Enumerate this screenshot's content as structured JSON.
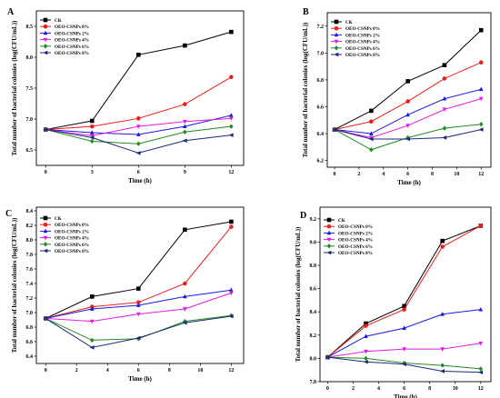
{
  "figure": {
    "legend_labels": [
      "CK",
      "OEO-CSNPs 0%",
      "OEO-CSNPs 2%",
      "OEO-CSNPs 4%",
      "OEO-CSNPs 6%",
      "OEO-CSNPs 8%"
    ],
    "series_colors": [
      "#000000",
      "#e8201c",
      "#1a1ad6",
      "#e01ee0",
      "#228b22",
      "#1c2a7a"
    ],
    "series_markers": [
      "square",
      "circle",
      "triangle-up",
      "triangle-down",
      "diamond",
      "triangle-left"
    ]
  },
  "chart_data": [
    {
      "panel_label": "A",
      "type": "line",
      "xlabel": "Time (h)",
      "ylabel": "Total number of bacterial colonies (log(CFU/mL))",
      "x": [
        0,
        3,
        6,
        9,
        12
      ],
      "xlim": [
        -0.6,
        12.8
      ],
      "ylim": [
        6.25,
        8.75
      ],
      "xticks": [
        "0",
        "3",
        "6",
        "9",
        "12"
      ],
      "yticks": [
        "6.5",
        "7.0",
        "7.5",
        "8.0",
        "8.5"
      ],
      "ytick_values": [
        6.5,
        7.0,
        7.5,
        8.0,
        8.5
      ],
      "legend_position": "top-left",
      "series": [
        {
          "name": "CK",
          "values": [
            6.83,
            6.97,
            8.04,
            8.19,
            8.41
          ]
        },
        {
          "name": "OEO-CSNPs 0%",
          "values": [
            6.83,
            6.88,
            7.01,
            7.24,
            7.68
          ]
        },
        {
          "name": "OEO-CSNPs 2%",
          "values": [
            6.83,
            6.78,
            6.75,
            6.88,
            7.06
          ]
        },
        {
          "name": "OEO-CSNPs 4%",
          "values": [
            6.83,
            6.73,
            6.88,
            6.96,
            7.01
          ]
        },
        {
          "name": "OEO-CSNPs 6%",
          "values": [
            6.83,
            6.64,
            6.6,
            6.79,
            6.88
          ]
        },
        {
          "name": "OEO-CSNPs 8%",
          "values": [
            6.83,
            6.7,
            6.45,
            6.65,
            6.74
          ]
        }
      ]
    },
    {
      "panel_label": "B",
      "type": "line",
      "xlabel": "Time (h)",
      "ylabel": "Total number of bacterial colonies (log(CFU/mL))",
      "x": [
        0,
        3,
        6,
        9,
        12
      ],
      "xlim": [
        -0.6,
        12.8
      ],
      "ylim": [
        6.15,
        7.3
      ],
      "xticks": [
        "0",
        "2",
        "4",
        "6",
        "8",
        "10",
        "12"
      ],
      "xtick_values": [
        0,
        2,
        4,
        6,
        8,
        10,
        12
      ],
      "yticks": [
        "6.2",
        "6.4",
        "6.6",
        "6.8",
        "7.0",
        "7.2"
      ],
      "ytick_values": [
        6.2,
        6.4,
        6.6,
        6.8,
        7.0,
        7.2
      ],
      "legend_position": "top-left",
      "series": [
        {
          "name": "CK",
          "values": [
            6.43,
            6.57,
            6.79,
            6.91,
            7.17
          ]
        },
        {
          "name": "OEO-CSNPs 0%",
          "values": [
            6.43,
            6.49,
            6.64,
            6.81,
            6.93
          ]
        },
        {
          "name": "OEO-CSNPs 2%",
          "values": [
            6.43,
            6.4,
            6.54,
            6.66,
            6.73
          ]
        },
        {
          "name": "OEO-CSNPs 4%",
          "values": [
            6.43,
            6.37,
            6.46,
            6.58,
            6.66
          ]
        },
        {
          "name": "OEO-CSNPs 6%",
          "values": [
            6.43,
            6.28,
            6.37,
            6.44,
            6.47
          ]
        },
        {
          "name": "OEO-CSNPs 8%",
          "values": [
            6.43,
            6.36,
            6.36,
            6.37,
            6.43
          ]
        }
      ]
    },
    {
      "panel_label": "C",
      "type": "line",
      "xlabel": "Time (h)",
      "ylabel": "Total number of bacterial colonies (log(CFU/mL))",
      "x": [
        0,
        3,
        6,
        9,
        12
      ],
      "xlim": [
        -0.6,
        12.8
      ],
      "ylim": [
        6.3,
        8.45
      ],
      "xticks": [
        "0",
        "2",
        "4",
        "6",
        "8",
        "10",
        "12"
      ],
      "xtick_values": [
        0,
        2,
        4,
        6,
        8,
        10,
        12
      ],
      "yticks": [
        "6.4",
        "6.6",
        "6.8",
        "7.0",
        "7.2",
        "7.4",
        "7.6",
        "7.8",
        "8.0",
        "8.2",
        "8.4"
      ],
      "ytick_values": [
        6.4,
        6.6,
        6.8,
        7.0,
        7.2,
        7.4,
        7.6,
        7.8,
        8.0,
        8.2,
        8.4
      ],
      "legend_position": "top-left",
      "series": [
        {
          "name": "CK",
          "values": [
            6.92,
            7.22,
            7.33,
            8.14,
            8.25
          ]
        },
        {
          "name": "OEO-CSNPs 0%",
          "values": [
            6.92,
            7.08,
            7.14,
            7.4,
            8.18
          ]
        },
        {
          "name": "OEO-CSNPs 2%",
          "values": [
            6.92,
            7.05,
            7.1,
            7.22,
            7.31
          ]
        },
        {
          "name": "OEO-CSNPs 4%",
          "values": [
            6.92,
            6.88,
            6.98,
            7.05,
            7.27
          ]
        },
        {
          "name": "OEO-CSNPs 6%",
          "values": [
            6.92,
            6.62,
            6.64,
            6.88,
            6.96
          ]
        },
        {
          "name": "OEO-CSNPs 8%",
          "values": [
            6.92,
            6.52,
            6.65,
            6.86,
            6.95
          ]
        }
      ]
    },
    {
      "panel_label": "D",
      "type": "line",
      "xlabel": "Time (h)",
      "ylabel": "Total number of bacterial colonies (log(CFU/mL))",
      "x": [
        0,
        3,
        6,
        9,
        12
      ],
      "xlim": [
        -0.6,
        12.8
      ],
      "ylim": [
        7.8,
        9.3
      ],
      "xticks": [
        "0",
        "2",
        "4",
        "6",
        "8",
        "10",
        "12"
      ],
      "xtick_values": [
        0,
        2,
        4,
        6,
        8,
        10,
        12
      ],
      "yticks": [
        "7.8",
        "8.0",
        "8.2",
        "8.4",
        "8.6",
        "8.8",
        "9.0",
        "9.2"
      ],
      "ytick_values": [
        7.8,
        8.0,
        8.2,
        8.4,
        8.6,
        8.8,
        9.0,
        9.2
      ],
      "legend_position": "top-left",
      "series": [
        {
          "name": "CK",
          "values": [
            8.01,
            8.3,
            8.45,
            9.01,
            9.14
          ]
        },
        {
          "name": "OEO-CSNPs 0%",
          "values": [
            8.01,
            8.28,
            8.42,
            8.96,
            9.14
          ]
        },
        {
          "name": "OEO-CSNPs 2%",
          "values": [
            8.01,
            8.19,
            8.26,
            8.38,
            8.42
          ]
        },
        {
          "name": "OEO-CSNPs 4%",
          "values": [
            8.01,
            8.06,
            8.08,
            8.08,
            8.13
          ]
        },
        {
          "name": "OEO-CSNPs 6%",
          "values": [
            8.01,
            8.0,
            7.96,
            7.94,
            7.91
          ]
        },
        {
          "name": "OEO-CSNPs 8%",
          "values": [
            8.01,
            7.97,
            7.95,
            7.89,
            7.88
          ]
        }
      ]
    }
  ]
}
